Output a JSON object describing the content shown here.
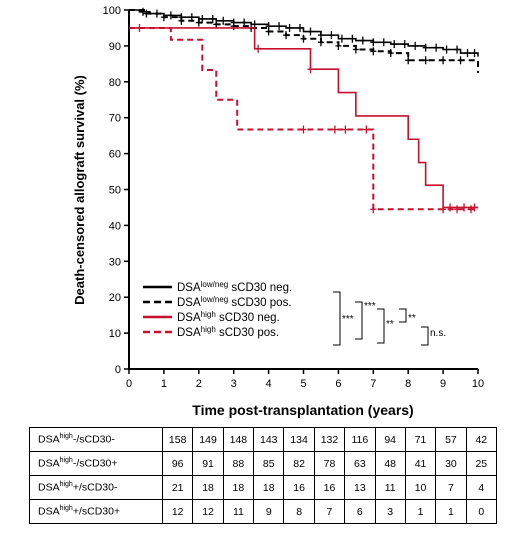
{
  "chart_data": {
    "type": "line",
    "subtype": "kaplan-meier",
    "title": "",
    "xlabel": "Time post-transplantation (years)",
    "ylabel": "Death-censored allograft survival (%)",
    "xlim": [
      0,
      10
    ],
    "ylim": [
      0,
      100
    ],
    "xticks": [
      "0",
      "1",
      "2",
      "3",
      "4",
      "5",
      "6",
      "7",
      "8",
      "9",
      "10"
    ],
    "yticks": [
      "0",
      "10",
      "20",
      "30",
      "40",
      "50",
      "60",
      "70",
      "80",
      "90",
      "100"
    ],
    "grid": false,
    "legend_position": "bottom-left",
    "series": [
      {
        "legend_prefix": "DSA",
        "legend_sup": "low/neg",
        "legend_suffix": " sCD30  neg.",
        "color": "#000000",
        "dashed": false,
        "x": [
          0,
          0.3,
          0.6,
          1.0,
          1.5,
          2.0,
          2.5,
          3.0,
          3.5,
          4.0,
          4.5,
          5.0,
          5.5,
          6.0,
          6.5,
          7.0,
          7.5,
          8.0,
          8.5,
          9.0,
          9.5,
          10.0
        ],
        "y": [
          100,
          99.5,
          99,
          98.5,
          98,
          97.5,
          97,
          96.5,
          96,
          95.5,
          95,
          94,
          93,
          92,
          91.5,
          91,
          90.5,
          90,
          89.5,
          89,
          88,
          87
        ],
        "censor_x": [
          0.4,
          0.8,
          1.2,
          1.5,
          1.8,
          2.1,
          2.4,
          2.7,
          3.0,
          3.3,
          3.6,
          4.0,
          4.3,
          4.6,
          4.9,
          5.2,
          5.5,
          5.8,
          6.1,
          6.4,
          6.7,
          7.0,
          7.3,
          7.6,
          7.9,
          8.2,
          8.5,
          8.8,
          9.1,
          9.4,
          9.7,
          9.9
        ]
      },
      {
        "legend_prefix": "DSA",
        "legend_sup": "low/neg",
        "legend_suffix": " sCD30  pos.",
        "color": "#000000",
        "dashed": true,
        "x": [
          0,
          0.5,
          1.0,
          1.5,
          2.0,
          2.5,
          3.0,
          3.5,
          4.0,
          4.5,
          5.0,
          5.5,
          6.0,
          6.5,
          7.0,
          7.5,
          8.0,
          8.5,
          9.0,
          9.5,
          10.0
        ],
        "y": [
          100,
          99,
          98,
          97,
          96.5,
          96,
          95.5,
          95,
          94,
          93,
          92,
          91,
          90,
          89,
          88.5,
          88,
          86,
          86,
          86,
          86,
          82.5
        ],
        "censor_x": [
          0.5,
          1.0,
          1.5,
          2.0,
          2.5,
          3.0,
          3.5,
          4.0,
          4.5,
          5.0,
          5.5,
          6.0,
          6.5,
          7.0,
          7.5,
          8.0,
          8.5,
          9.0,
          9.5
        ]
      },
      {
        "legend_prefix": "DSA",
        "legend_sup": "high",
        "legend_suffix": " sCD30  neg.",
        "color": "#c8102e",
        "dashed": false,
        "x": [
          0,
          3.6,
          5.2,
          6.0,
          6.5,
          8.0,
          8.3,
          8.5,
          9.0,
          10.0
        ],
        "y": [
          95,
          89.2,
          83.5,
          77,
          70.5,
          64,
          57.5,
          51.2,
          45,
          45
        ],
        "censor_x": [
          3.7,
          5.2,
          9.2,
          9.6,
          9.9
        ]
      },
      {
        "legend_prefix": "DSA",
        "legend_sup": "high",
        "legend_suffix": " sCD30  pos.",
        "color": "#c8102e",
        "dashed": true,
        "x": [
          0,
          1.2,
          2.1,
          2.5,
          3.1,
          7.0,
          10.0
        ],
        "y": [
          95,
          91.7,
          83.3,
          75,
          66.7,
          44.5,
          44.5
        ],
        "censor_x": [
          0.3,
          5.0,
          5.9,
          6.2,
          6.8,
          7.0,
          9.0,
          9.4,
          9.8
        ]
      }
    ],
    "significance": [
      "***",
      "***",
      "**",
      "**",
      "n.s."
    ]
  },
  "risk_table": {
    "rows": [
      {
        "prefix": "DSA",
        "sup": "high",
        "suffix": "-/sCD30-",
        "values": [
          "158",
          "149",
          "148",
          "143",
          "134",
          "132",
          "116",
          "94",
          "71",
          "57",
          "42"
        ]
      },
      {
        "prefix": "DSA",
        "sup": "high",
        "suffix": "-/sCD30+",
        "values": [
          "96",
          "91",
          "88",
          "85",
          "82",
          "78",
          "63",
          "48",
          "41",
          "30",
          "25"
        ]
      },
      {
        "prefix": "DSA",
        "sup": "high",
        "suffix": "+/sCD30-",
        "values": [
          "21",
          "18",
          "18",
          "18",
          "16",
          "16",
          "13",
          "11",
          "10",
          "7",
          "4"
        ]
      },
      {
        "prefix": "DSA",
        "sup": "high",
        "suffix": "+/sCD30+",
        "values": [
          "12",
          "12",
          "11",
          "9",
          "8",
          "7",
          "6",
          "3",
          "1",
          "1",
          "0"
        ]
      }
    ]
  }
}
